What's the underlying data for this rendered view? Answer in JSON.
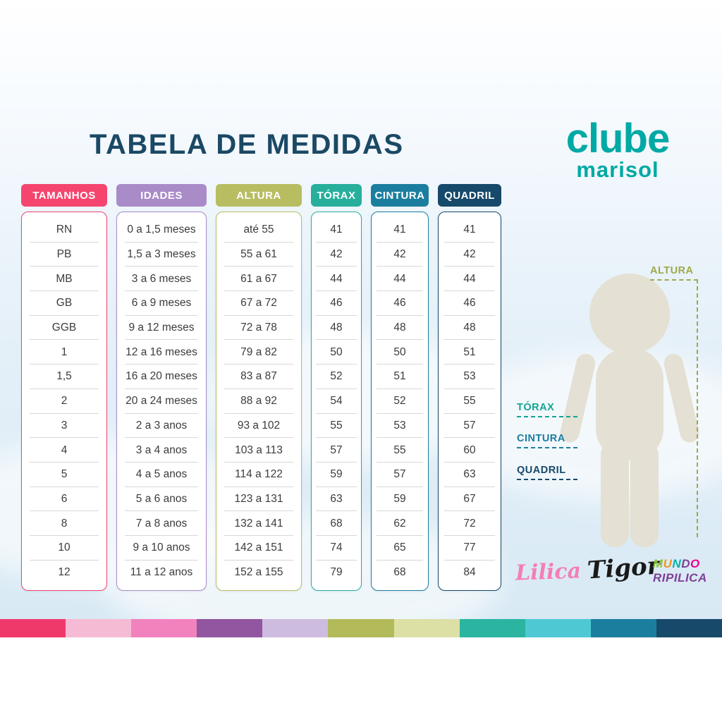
{
  "chart_data": {
    "type": "table",
    "title": "TABELA DE MEDIDAS",
    "columns": [
      {
        "id": "tamanhos",
        "label": "TAMANHOS",
        "color": "#F5456F",
        "values": [
          "RN",
          "PB",
          "MB",
          "GB",
          "GGB",
          "1",
          "1,5",
          "2",
          "3",
          "4",
          "5",
          "6",
          "8",
          "10",
          "12"
        ]
      },
      {
        "id": "idades",
        "label": "IDADES",
        "color": "#A98BC8",
        "values": [
          "0 a 1,5 meses",
          "1,5 a 3 meses",
          "3 a 6 meses",
          "6 a 9 meses",
          "9 a 12 meses",
          "12 a 16 meses",
          "16 a 20 meses",
          "20 a 24 meses",
          "2 a 3 anos",
          "3 a 4 anos",
          "4 a 5 anos",
          "5 a 6 anos",
          "7 a 8 anos",
          "9 a 10 anos",
          "11 a 12 anos"
        ]
      },
      {
        "id": "altura",
        "label": "ALTURA",
        "color": "#B8BD62",
        "values": [
          "até 55",
          "55 a 61",
          "61 a 67",
          "67 a 72",
          "72 a 78",
          "79 a 82",
          "83 a 87",
          "88 a 92",
          "93 a 102",
          "103 a 113",
          "114 a 122",
          "123 a 131",
          "132 a 141",
          "142 a 151",
          "152 a 155"
        ]
      },
      {
        "id": "torax",
        "label": "TÓRAX",
        "color": "#27AF9C",
        "values": [
          "41",
          "42",
          "44",
          "46",
          "48",
          "50",
          "52",
          "54",
          "55",
          "57",
          "59",
          "63",
          "68",
          "74",
          "79"
        ]
      },
      {
        "id": "cintura",
        "label": "CINTURA",
        "color": "#1C7E9F",
        "values": [
          "41",
          "42",
          "44",
          "46",
          "48",
          "50",
          "51",
          "52",
          "53",
          "55",
          "57",
          "59",
          "62",
          "65",
          "68"
        ]
      },
      {
        "id": "quadril",
        "label": "QUADRIL",
        "color": "#17496B",
        "values": [
          "41",
          "42",
          "44",
          "46",
          "48",
          "51",
          "53",
          "55",
          "57",
          "60",
          "63",
          "67",
          "72",
          "77",
          "84"
        ]
      }
    ]
  },
  "title_color": "#1B4965",
  "logo": {
    "line1": "clube",
    "line2": "marisol",
    "color": "#00A9A4"
  },
  "figure": {
    "silhouette_color": "#E4E0D3",
    "callouts": {
      "altura": {
        "label": "ALTURA",
        "color": "#9FA94B"
      },
      "torax": {
        "label": "TÓRAX",
        "color": "#14A493"
      },
      "cintura": {
        "label": "CINTURA",
        "color": "#1C7E9F"
      },
      "quadril": {
        "label": "QUADRIL",
        "color": "#17496B"
      }
    }
  },
  "brands": {
    "lilica": {
      "text": "Lilica",
      "color": "#F47EB6"
    },
    "tigor": {
      "text": "Tigor",
      "color": "#1A1A1A"
    },
    "mundo": {
      "line1": "MUNDO",
      "line2": "RIPILICA",
      "letter_colors": [
        "#8DC63F",
        "#F7941D",
        "#00B2A9",
        "#7F3F98",
        "#EC008C"
      ],
      "line2_color": "#7F3F98"
    }
  },
  "footer_strip_colors": [
    "#F0396B",
    "#F6BBD4",
    "#F282BE",
    "#91569F",
    "#CDBCE0",
    "#B3BA5A",
    "#DCE0A5",
    "#2BB5A0",
    "#4EC9D4",
    "#1C7E9F",
    "#17496B"
  ]
}
